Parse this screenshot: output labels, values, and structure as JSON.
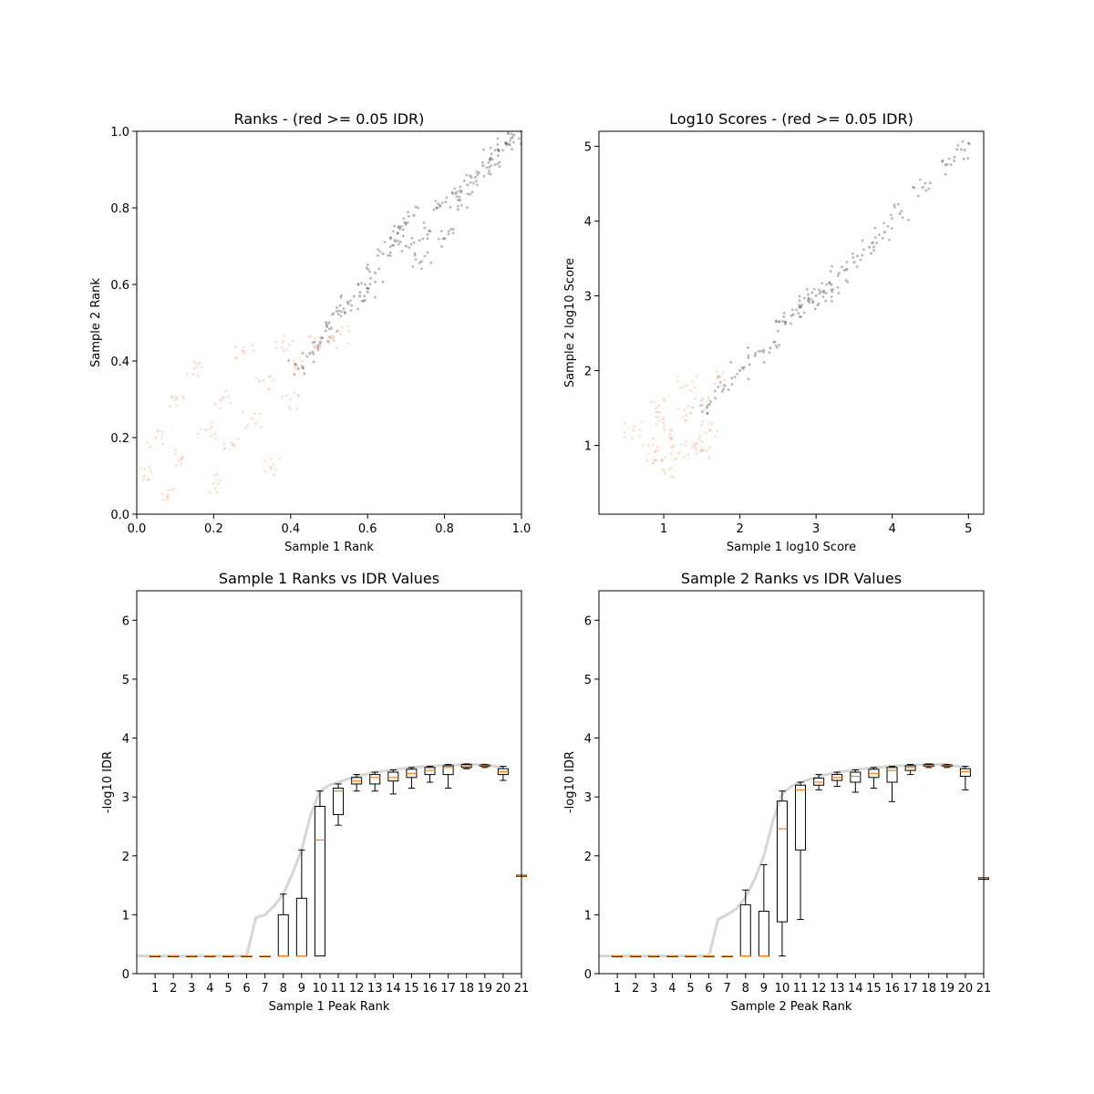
{
  "chart_data": [
    {
      "type": "scatter",
      "title": "Ranks - (red >= 0.05 IDR)",
      "xlabel": "Sample 1 Rank",
      "ylabel": "Sample 2 Rank",
      "xlim": [
        0,
        1
      ],
      "ylim": [
        0,
        1
      ],
      "xticks": [
        "0.0",
        "0.2",
        "0.4",
        "0.6",
        "0.8",
        "1.0"
      ],
      "yticks": [
        "0.0",
        "0.2",
        "0.4",
        "0.6",
        "0.8",
        "1.0"
      ],
      "colors": {
        "pass": "#333333",
        "fail": "#f4a582"
      },
      "series": [
        {
          "class": "pass",
          "description_region": "diagonal band from rank 0.42 to 1.0, widening between 0.6 and 0.85",
          "points": [
            [
              0.42,
              0.38
            ],
            [
              0.45,
              0.42
            ],
            [
              0.48,
              0.46
            ],
            [
              0.5,
              0.5
            ],
            [
              0.52,
              0.53
            ],
            [
              0.55,
              0.55
            ],
            [
              0.58,
              0.57
            ],
            [
              0.6,
              0.58
            ],
            [
              0.62,
              0.63
            ],
            [
              0.64,
              0.68
            ],
            [
              0.66,
              0.72
            ],
            [
              0.68,
              0.75
            ],
            [
              0.7,
              0.7
            ],
            [
              0.72,
              0.78
            ],
            [
              0.74,
              0.66
            ],
            [
              0.76,
              0.74
            ],
            [
              0.78,
              0.8
            ],
            [
              0.8,
              0.72
            ],
            [
              0.82,
              0.84
            ],
            [
              0.84,
              0.82
            ],
            [
              0.86,
              0.86
            ],
            [
              0.88,
              0.88
            ],
            [
              0.9,
              0.91
            ],
            [
              0.92,
              0.93
            ],
            [
              0.94,
              0.95
            ],
            [
              0.96,
              0.97
            ],
            [
              0.98,
              0.99
            ],
            [
              1.0,
              1.0
            ]
          ]
        },
        {
          "class": "fail",
          "description_region": "broad cloud below rank 0.55",
          "points": [
            [
              0.02,
              0.1
            ],
            [
              0.05,
              0.2
            ],
            [
              0.08,
              0.05
            ],
            [
              0.1,
              0.3
            ],
            [
              0.12,
              0.15
            ],
            [
              0.15,
              0.38
            ],
            [
              0.18,
              0.22
            ],
            [
              0.2,
              0.08
            ],
            [
              0.22,
              0.3
            ],
            [
              0.25,
              0.18
            ],
            [
              0.28,
              0.42
            ],
            [
              0.3,
              0.25
            ],
            [
              0.33,
              0.35
            ],
            [
              0.35,
              0.12
            ],
            [
              0.38,
              0.45
            ],
            [
              0.4,
              0.3
            ],
            [
              0.43,
              0.4
            ],
            [
              0.46,
              0.44
            ],
            [
              0.5,
              0.45
            ],
            [
              0.53,
              0.47
            ]
          ]
        }
      ]
    },
    {
      "type": "scatter",
      "title": "Log10 Scores - (red >= 0.05 IDR)",
      "xlabel": "Sample 1 log10 Score",
      "ylabel": "Sample 2 log10 Score",
      "xlim": [
        0.15,
        5.2
      ],
      "ylim": [
        0.08,
        5.2
      ],
      "xticks": [
        "1",
        "2",
        "3",
        "4",
        "5"
      ],
      "yticks": [
        "1",
        "2",
        "3",
        "4",
        "5"
      ],
      "colors": {
        "pass": "#333333",
        "fail": "#f4a582"
      },
      "series": [
        {
          "class": "pass",
          "points": [
            [
              1.6,
              1.55
            ],
            [
              1.8,
              1.8
            ],
            [
              2.0,
              2.0
            ],
            [
              2.2,
              2.2
            ],
            [
              2.4,
              2.3
            ],
            [
              2.6,
              2.65
            ],
            [
              2.7,
              2.75
            ],
            [
              2.8,
              2.85
            ],
            [
              2.9,
              2.95
            ],
            [
              3.0,
              3.0
            ],
            [
              3.1,
              3.05
            ],
            [
              3.2,
              3.15
            ],
            [
              3.3,
              3.3
            ],
            [
              3.5,
              3.45
            ],
            [
              3.7,
              3.65
            ],
            [
              3.9,
              3.85
            ],
            [
              4.1,
              4.1
            ],
            [
              4.4,
              4.45
            ],
            [
              4.7,
              4.75
            ],
            [
              4.95,
              4.95
            ]
          ]
        },
        {
          "class": "fail",
          "points": [
            [
              0.6,
              1.2
            ],
            [
              0.8,
              1.0
            ],
            [
              0.9,
              0.8
            ],
            [
              1.0,
              1.3
            ],
            [
              1.1,
              1.1
            ],
            [
              1.2,
              0.9
            ],
            [
              1.3,
              1.4
            ],
            [
              1.4,
              1.0
            ],
            [
              1.5,
              1.6
            ],
            [
              1.6,
              1.2
            ],
            [
              1.7,
              1.9
            ],
            [
              0.9,
              1.5
            ],
            [
              1.1,
              0.7
            ],
            [
              1.3,
              1.8
            ],
            [
              1.5,
              0.95
            ]
          ]
        }
      ]
    },
    {
      "type": "box",
      "title": "Sample 1 Ranks vs IDR Values",
      "xlabel": "Sample 1 Peak Rank",
      "ylabel": "-log10 IDR",
      "ylim": [
        0,
        6.5
      ],
      "xticks": [
        "1",
        "2",
        "3",
        "4",
        "5",
        "6",
        "7",
        "8",
        "9",
        "10",
        "11",
        "12",
        "13",
        "14",
        "15",
        "16",
        "17",
        "18",
        "19",
        "20",
        "21"
      ],
      "yticks": [
        "0",
        "1",
        "2",
        "3",
        "4",
        "5",
        "6"
      ],
      "boxes": [
        {
          "pos": 1,
          "q1": 0.3,
          "med": 0.3,
          "q3": 0.3,
          "lo": 0.3,
          "hi": 0.3
        },
        {
          "pos": 2,
          "q1": 0.3,
          "med": 0.3,
          "q3": 0.3,
          "lo": 0.3,
          "hi": 0.3
        },
        {
          "pos": 3,
          "q1": 0.3,
          "med": 0.3,
          "q3": 0.3,
          "lo": 0.3,
          "hi": 0.3
        },
        {
          "pos": 4,
          "q1": 0.3,
          "med": 0.3,
          "q3": 0.3,
          "lo": 0.3,
          "hi": 0.3
        },
        {
          "pos": 5,
          "q1": 0.3,
          "med": 0.3,
          "q3": 0.3,
          "lo": 0.3,
          "hi": 0.3
        },
        {
          "pos": 6,
          "q1": 0.3,
          "med": 0.3,
          "q3": 0.3,
          "lo": 0.3,
          "hi": 0.3
        },
        {
          "pos": 7,
          "q1": 0.3,
          "med": 0.3,
          "q3": 0.3,
          "lo": 0.3,
          "hi": 0.3
        },
        {
          "pos": 8,
          "q1": 0.3,
          "med": 0.3,
          "q3": 1.0,
          "lo": 0.3,
          "hi": 1.35
        },
        {
          "pos": 9,
          "q1": 0.3,
          "med": 0.3,
          "q3": 1.28,
          "lo": 0.3,
          "hi": 2.1
        },
        {
          "pos": 10,
          "q1": 0.3,
          "med": 2.27,
          "q3": 2.84,
          "lo": 0.3,
          "hi": 3.1
        },
        {
          "pos": 11,
          "q1": 2.7,
          "med": 3.1,
          "q3": 3.15,
          "lo": 2.52,
          "hi": 3.22
        },
        {
          "pos": 12,
          "q1": 3.22,
          "med": 3.27,
          "q3": 3.33,
          "lo": 3.1,
          "hi": 3.38
        },
        {
          "pos": 13,
          "q1": 3.22,
          "med": 3.33,
          "q3": 3.38,
          "lo": 3.1,
          "hi": 3.42
        },
        {
          "pos": 14,
          "q1": 3.27,
          "med": 3.33,
          "q3": 3.42,
          "lo": 3.05,
          "hi": 3.46
        },
        {
          "pos": 15,
          "q1": 3.33,
          "med": 3.4,
          "q3": 3.47,
          "lo": 3.15,
          "hi": 3.5
        },
        {
          "pos": 16,
          "q1": 3.38,
          "med": 3.45,
          "q3": 3.5,
          "lo": 3.25,
          "hi": 3.52
        },
        {
          "pos": 17,
          "q1": 3.38,
          "med": 3.5,
          "q3": 3.53,
          "lo": 3.15,
          "hi": 3.55
        },
        {
          "pos": 18,
          "q1": 3.5,
          "med": 3.53,
          "q3": 3.55,
          "lo": 3.48,
          "hi": 3.56
        },
        {
          "pos": 19,
          "q1": 3.52,
          "med": 3.53,
          "q3": 3.54,
          "lo": 3.5,
          "hi": 3.55
        },
        {
          "pos": 20,
          "q1": 3.38,
          "med": 3.43,
          "q3": 3.48,
          "lo": 3.28,
          "hi": 3.52
        },
        {
          "pos": 21,
          "q1": 1.65,
          "med": 1.66,
          "q3": 1.67,
          "lo": 1.65,
          "hi": 1.67
        }
      ],
      "trace": [
        [
          0.0,
          0.3
        ],
        [
          6.0,
          0.3
        ],
        [
          6.5,
          0.95
        ],
        [
          7,
          1.0
        ],
        [
          7.5,
          1.15
        ],
        [
          8,
          1.35
        ],
        [
          8.5,
          1.7
        ],
        [
          9,
          2.1
        ],
        [
          9.5,
          2.7
        ],
        [
          10,
          3.1
        ],
        [
          10.5,
          3.2
        ],
        [
          11,
          3.25
        ],
        [
          12,
          3.35
        ],
        [
          13,
          3.42
        ],
        [
          14,
          3.46
        ],
        [
          15,
          3.5
        ],
        [
          16,
          3.52
        ],
        [
          17,
          3.54
        ],
        [
          18,
          3.55
        ],
        [
          19,
          3.55
        ],
        [
          20,
          3.5
        ]
      ],
      "colors": {
        "box": "#000000",
        "median": "#ff7f0e",
        "trace": "#bbbbbb"
      }
    },
    {
      "type": "box",
      "title": "Sample 2 Ranks vs IDR Values",
      "xlabel": "Sample 2 Peak Rank",
      "ylabel": "-log10 IDR",
      "ylim": [
        0,
        6.5
      ],
      "xticks": [
        "1",
        "2",
        "3",
        "4",
        "5",
        "6",
        "7",
        "8",
        "9",
        "10",
        "11",
        "12",
        "13",
        "14",
        "15",
        "16",
        "17",
        "18",
        "19",
        "20",
        "21"
      ],
      "yticks": [
        "0",
        "1",
        "2",
        "3",
        "4",
        "5",
        "6"
      ],
      "boxes": [
        {
          "pos": 1,
          "q1": 0.3,
          "med": 0.3,
          "q3": 0.3,
          "lo": 0.3,
          "hi": 0.3
        },
        {
          "pos": 2,
          "q1": 0.3,
          "med": 0.3,
          "q3": 0.3,
          "lo": 0.3,
          "hi": 0.3
        },
        {
          "pos": 3,
          "q1": 0.3,
          "med": 0.3,
          "q3": 0.3,
          "lo": 0.3,
          "hi": 0.3
        },
        {
          "pos": 4,
          "q1": 0.3,
          "med": 0.3,
          "q3": 0.3,
          "lo": 0.3,
          "hi": 0.3
        },
        {
          "pos": 5,
          "q1": 0.3,
          "med": 0.3,
          "q3": 0.3,
          "lo": 0.3,
          "hi": 0.3
        },
        {
          "pos": 6,
          "q1": 0.3,
          "med": 0.3,
          "q3": 0.3,
          "lo": 0.3,
          "hi": 0.3
        },
        {
          "pos": 7,
          "q1": 0.3,
          "med": 0.3,
          "q3": 0.3,
          "lo": 0.3,
          "hi": 0.3
        },
        {
          "pos": 8,
          "q1": 0.3,
          "med": 0.3,
          "q3": 1.17,
          "lo": 0.3,
          "hi": 1.42
        },
        {
          "pos": 9,
          "q1": 0.3,
          "med": 0.3,
          "q3": 1.06,
          "lo": 0.3,
          "hi": 1.85
        },
        {
          "pos": 10,
          "q1": 0.88,
          "med": 2.46,
          "q3": 2.93,
          "lo": 0.3,
          "hi": 3.1
        },
        {
          "pos": 11,
          "q1": 2.1,
          "med": 3.12,
          "q3": 3.2,
          "lo": 0.92,
          "hi": 3.25
        },
        {
          "pos": 12,
          "q1": 3.2,
          "med": 3.25,
          "q3": 3.32,
          "lo": 3.12,
          "hi": 3.38
        },
        {
          "pos": 13,
          "q1": 3.28,
          "med": 3.33,
          "q3": 3.38,
          "lo": 3.18,
          "hi": 3.42
        },
        {
          "pos": 14,
          "q1": 3.25,
          "med": 3.35,
          "q3": 3.42,
          "lo": 3.08,
          "hi": 3.46
        },
        {
          "pos": 15,
          "q1": 3.33,
          "med": 3.4,
          "q3": 3.47,
          "lo": 3.15,
          "hi": 3.5
        },
        {
          "pos": 16,
          "q1": 3.25,
          "med": 3.45,
          "q3": 3.5,
          "lo": 2.92,
          "hi": 3.52
        },
        {
          "pos": 17,
          "q1": 3.45,
          "med": 3.5,
          "q3": 3.53,
          "lo": 3.38,
          "hi": 3.55
        },
        {
          "pos": 18,
          "q1": 3.52,
          "med": 3.53,
          "q3": 3.55,
          "lo": 3.5,
          "hi": 3.56
        },
        {
          "pos": 19,
          "q1": 3.52,
          "med": 3.53,
          "q3": 3.54,
          "lo": 3.5,
          "hi": 3.55
        },
        {
          "pos": 20,
          "q1": 3.35,
          "med": 3.43,
          "q3": 3.48,
          "lo": 3.12,
          "hi": 3.52
        },
        {
          "pos": 21,
          "q1": 1.6,
          "med": 1.62,
          "q3": 1.63,
          "lo": 1.6,
          "hi": 1.63
        }
      ],
      "trace": [
        [
          0.0,
          0.3
        ],
        [
          6.0,
          0.3
        ],
        [
          6.5,
          0.92
        ],
        [
          7,
          1.0
        ],
        [
          7.5,
          1.1
        ],
        [
          8,
          1.3
        ],
        [
          8.5,
          1.6
        ],
        [
          9,
          2.0
        ],
        [
          9.5,
          2.6
        ],
        [
          10,
          3.05
        ],
        [
          10.5,
          3.18
        ],
        [
          11,
          3.25
        ],
        [
          12,
          3.35
        ],
        [
          13,
          3.42
        ],
        [
          14,
          3.46
        ],
        [
          15,
          3.5
        ],
        [
          16,
          3.52
        ],
        [
          17,
          3.54
        ],
        [
          18,
          3.55
        ],
        [
          19,
          3.55
        ],
        [
          20,
          3.5
        ]
      ],
      "colors": {
        "box": "#000000",
        "median": "#ff7f0e",
        "trace": "#bbbbbb"
      }
    }
  ]
}
